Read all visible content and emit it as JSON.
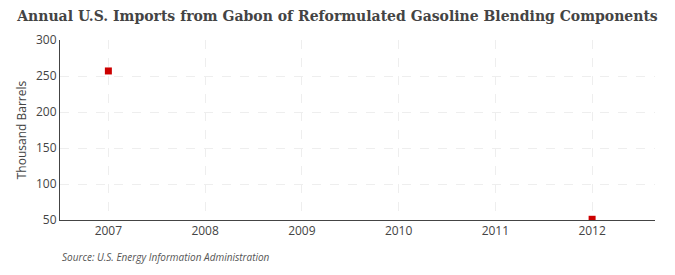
{
  "chart_data": {
    "type": "scatter",
    "title": "Annual U.S. Imports from Gabon of Reformulated Gasoline Blending Components",
    "ylabel": "Thousand Barrels",
    "source": "Source: U.S. Energy Information Administration",
    "x": [
      2007,
      2012
    ],
    "values": [
      257,
      51
    ],
    "color": "#cc0000",
    "marker": "square",
    "xlim": [
      2006.5,
      2012.65
    ],
    "ylim": [
      50,
      300
    ],
    "xticks": [
      2007,
      2008,
      2009,
      2010,
      2011,
      2012
    ],
    "yticks": [
      50,
      100,
      150,
      200,
      250,
      300
    ],
    "grid": true
  }
}
